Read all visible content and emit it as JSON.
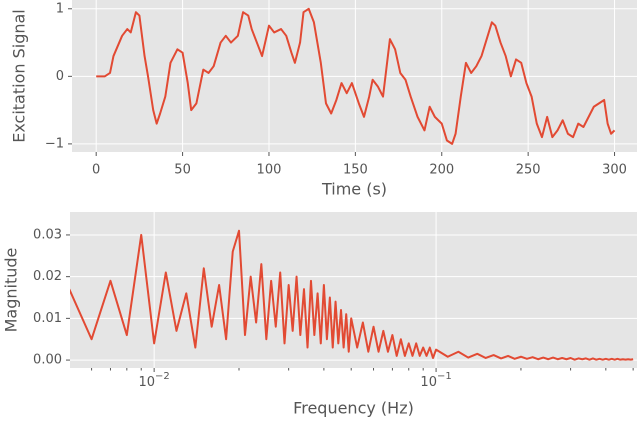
{
  "chart_data": [
    {
      "type": "line",
      "xlabel": "Time (s)",
      "ylabel": "Excitation Signal",
      "color": "#e24a33",
      "grid": true,
      "xlim": [
        -14,
        313
      ],
      "xticks": [
        0,
        50,
        100,
        150,
        200,
        250,
        300
      ],
      "ylim": [
        -1.12,
        1.13
      ],
      "yticks": [
        {
          "value": -1,
          "label": "−1"
        },
        0,
        1
      ],
      "x": [
        0,
        5,
        8,
        10,
        15,
        18,
        20,
        23,
        25,
        28,
        30,
        33,
        35,
        37,
        40,
        43,
        47,
        50,
        53,
        55,
        58,
        62,
        65,
        68,
        72,
        75,
        78,
        82,
        85,
        88,
        90,
        93,
        96,
        100,
        103,
        107,
        110,
        113,
        115,
        118,
        120,
        123,
        126,
        130,
        133,
        136,
        139,
        142,
        145,
        148,
        152,
        155,
        158,
        160,
        163,
        166,
        170,
        173,
        176,
        179,
        182,
        186,
        190,
        193,
        196,
        200,
        203,
        206,
        208,
        211,
        214,
        217,
        220,
        223,
        226,
        229,
        231,
        234,
        237,
        240,
        243,
        246,
        249,
        252,
        255,
        258,
        261,
        264,
        267,
        270,
        273,
        276,
        279,
        282,
        285,
        288,
        291,
        294,
        296,
        298,
        300
      ],
      "values": [
        0,
        0,
        0.05,
        0.3,
        0.6,
        0.7,
        0.65,
        0.95,
        0.9,
        0.3,
        0,
        -0.5,
        -0.7,
        -0.55,
        -0.3,
        0.2,
        0.4,
        0.35,
        -0.1,
        -0.5,
        -0.4,
        0.1,
        0.05,
        0.15,
        0.5,
        0.6,
        0.5,
        0.6,
        0.95,
        0.9,
        0.7,
        0.5,
        0.3,
        0.75,
        0.65,
        0.7,
        0.6,
        0.35,
        0.2,
        0.5,
        0.95,
        1.0,
        0.8,
        0.2,
        -0.4,
        -0.55,
        -0.35,
        -0.1,
        -0.25,
        -0.1,
        -0.4,
        -0.6,
        -0.3,
        -0.05,
        -0.15,
        -0.3,
        0.55,
        0.4,
        0.05,
        -0.05,
        -0.3,
        -0.6,
        -0.8,
        -0.45,
        -0.6,
        -0.7,
        -0.95,
        -1.0,
        -0.85,
        -0.3,
        0.2,
        0.05,
        0.15,
        0.3,
        0.55,
        0.8,
        0.75,
        0.5,
        0.3,
        0.0,
        0.25,
        0.2,
        -0.1,
        -0.3,
        -0.7,
        -0.9,
        -0.6,
        -0.9,
        -0.8,
        -0.65,
        -0.85,
        -0.9,
        -0.7,
        -0.75,
        -0.6,
        -0.45,
        -0.4,
        -0.35,
        -0.7,
        -0.85,
        -0.8
      ]
    },
    {
      "type": "line",
      "xlabel": "Frequency (Hz)",
      "ylabel": "Magnitude",
      "color": "#e24a33",
      "grid": true,
      "xscale": "log",
      "xlim": [
        0.00503,
        0.516
      ],
      "xticks": [
        {
          "value": 0.01,
          "label": "10",
          "exponent": "−2"
        },
        {
          "value": 0.1,
          "label": "10",
          "exponent": "−1"
        }
      ],
      "xminor_ticks": [
        0.006,
        0.007,
        0.008,
        0.009,
        0.02,
        0.03,
        0.04,
        0.05,
        0.06,
        0.07,
        0.08,
        0.09,
        0.2,
        0.3,
        0.4,
        0.5
      ],
      "ylim": [
        -0.0019,
        0.0355
      ],
      "yticks": [
        {
          "value": 0,
          "label": "0.00"
        },
        {
          "value": 0.01,
          "label": "0.01"
        },
        {
          "value": 0.02,
          "label": "0.02"
        },
        {
          "value": 0.03,
          "label": "0.03"
        }
      ],
      "x": [
        0.005,
        0.006,
        0.007,
        0.008,
        0.009,
        0.01,
        0.011,
        0.012,
        0.013,
        0.014,
        0.015,
        0.016,
        0.017,
        0.018,
        0.019,
        0.02,
        0.021,
        0.022,
        0.023,
        0.024,
        0.025,
        0.026,
        0.027,
        0.028,
        0.029,
        0.03,
        0.031,
        0.032,
        0.033,
        0.034,
        0.035,
        0.036,
        0.037,
        0.038,
        0.039,
        0.04,
        0.041,
        0.042,
        0.043,
        0.044,
        0.045,
        0.046,
        0.047,
        0.048,
        0.049,
        0.05,
        0.0525,
        0.055,
        0.0575,
        0.06,
        0.0625,
        0.065,
        0.0675,
        0.07,
        0.0725,
        0.075,
        0.0775,
        0.08,
        0.0825,
        0.085,
        0.0875,
        0.09,
        0.0925,
        0.095,
        0.0975,
        0.1,
        0.11,
        0.12,
        0.13,
        0.14,
        0.15,
        0.16,
        0.17,
        0.18,
        0.19,
        0.2,
        0.21,
        0.22,
        0.23,
        0.24,
        0.25,
        0.26,
        0.27,
        0.28,
        0.29,
        0.3,
        0.31,
        0.32,
        0.33,
        0.34,
        0.35,
        0.36,
        0.37,
        0.38,
        0.39,
        0.4,
        0.41,
        0.42,
        0.43,
        0.44,
        0.45,
        0.46,
        0.47,
        0.48,
        0.49,
        0.5
      ],
      "values": [
        0.017,
        0.005,
        0.019,
        0.006,
        0.03,
        0.004,
        0.021,
        0.007,
        0.016,
        0.003,
        0.022,
        0.008,
        0.018,
        0.005,
        0.026,
        0.031,
        0.006,
        0.02,
        0.009,
        0.023,
        0.005,
        0.019,
        0.008,
        0.021,
        0.004,
        0.018,
        0.007,
        0.02,
        0.006,
        0.017,
        0.003,
        0.019,
        0.006,
        0.016,
        0.004,
        0.018,
        0.005,
        0.015,
        0.003,
        0.014,
        0.004,
        0.012,
        0.003,
        0.011,
        0.002,
        0.01,
        0.003,
        0.009,
        0.002,
        0.008,
        0.002,
        0.007,
        0.002,
        0.006,
        0.001,
        0.005,
        0.001,
        0.004,
        0.001,
        0.004,
        0.001,
        0.003,
        0.001,
        0.003,
        0.0005,
        0.0025,
        0.0008,
        0.002,
        0.0006,
        0.0015,
        0.0005,
        0.0012,
        0.0004,
        0.001,
        0.0003,
        0.0008,
        0.0003,
        0.0007,
        0.0002,
        0.0006,
        0.0002,
        0.0006,
        0.0002,
        0.0005,
        0.0002,
        0.0005,
        0.0001,
        0.0004,
        0.0002,
        0.0004,
        0.0001,
        0.0004,
        0.0001,
        0.0003,
        0.0001,
        0.0003,
        0.0001,
        0.0003,
        0.0001,
        0.0003,
        0.0001,
        0.0002,
        0.0001,
        0.0002,
        0.0001,
        0.0002
      ]
    }
  ]
}
